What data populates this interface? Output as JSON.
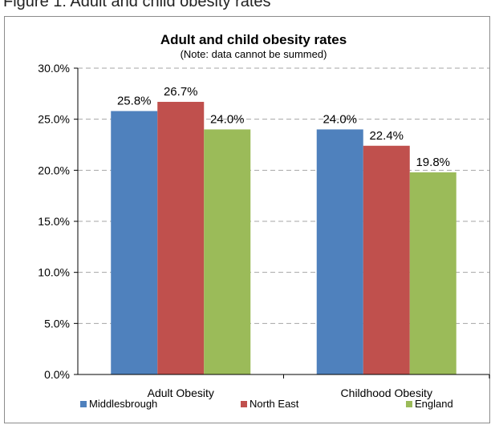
{
  "caption": "Figure 1: Adult and child obesity rates",
  "chart_data": {
    "type": "bar",
    "title": "Adult and child obesity rates",
    "subtitle": "(Note: data cannot be summed)",
    "categories": [
      "Adult Obesity",
      "Childhood Obesity"
    ],
    "series": [
      {
        "name": "Middlesbrough",
        "color": "#4f81bd",
        "values": [
          25.8,
          24.0
        ],
        "labels": [
          "25.8%",
          "24.0%"
        ]
      },
      {
        "name": "North East",
        "color": "#c0504d",
        "values": [
          26.7,
          22.4
        ],
        "labels": [
          "26.7%",
          "22.4%"
        ]
      },
      {
        "name": "England",
        "color": "#9bbb59",
        "values": [
          24.0,
          19.8
        ],
        "labels": [
          "24.0%",
          "19.8%"
        ]
      }
    ],
    "ylim": [
      0,
      30
    ],
    "yticks": [
      0,
      5,
      10,
      15,
      20,
      25,
      30
    ],
    "ytick_labels": [
      "0.0%",
      "5.0%",
      "10.0%",
      "15.0%",
      "20.0%",
      "25.0%",
      "30.0%"
    ],
    "grid": true,
    "legend": "bottom"
  }
}
